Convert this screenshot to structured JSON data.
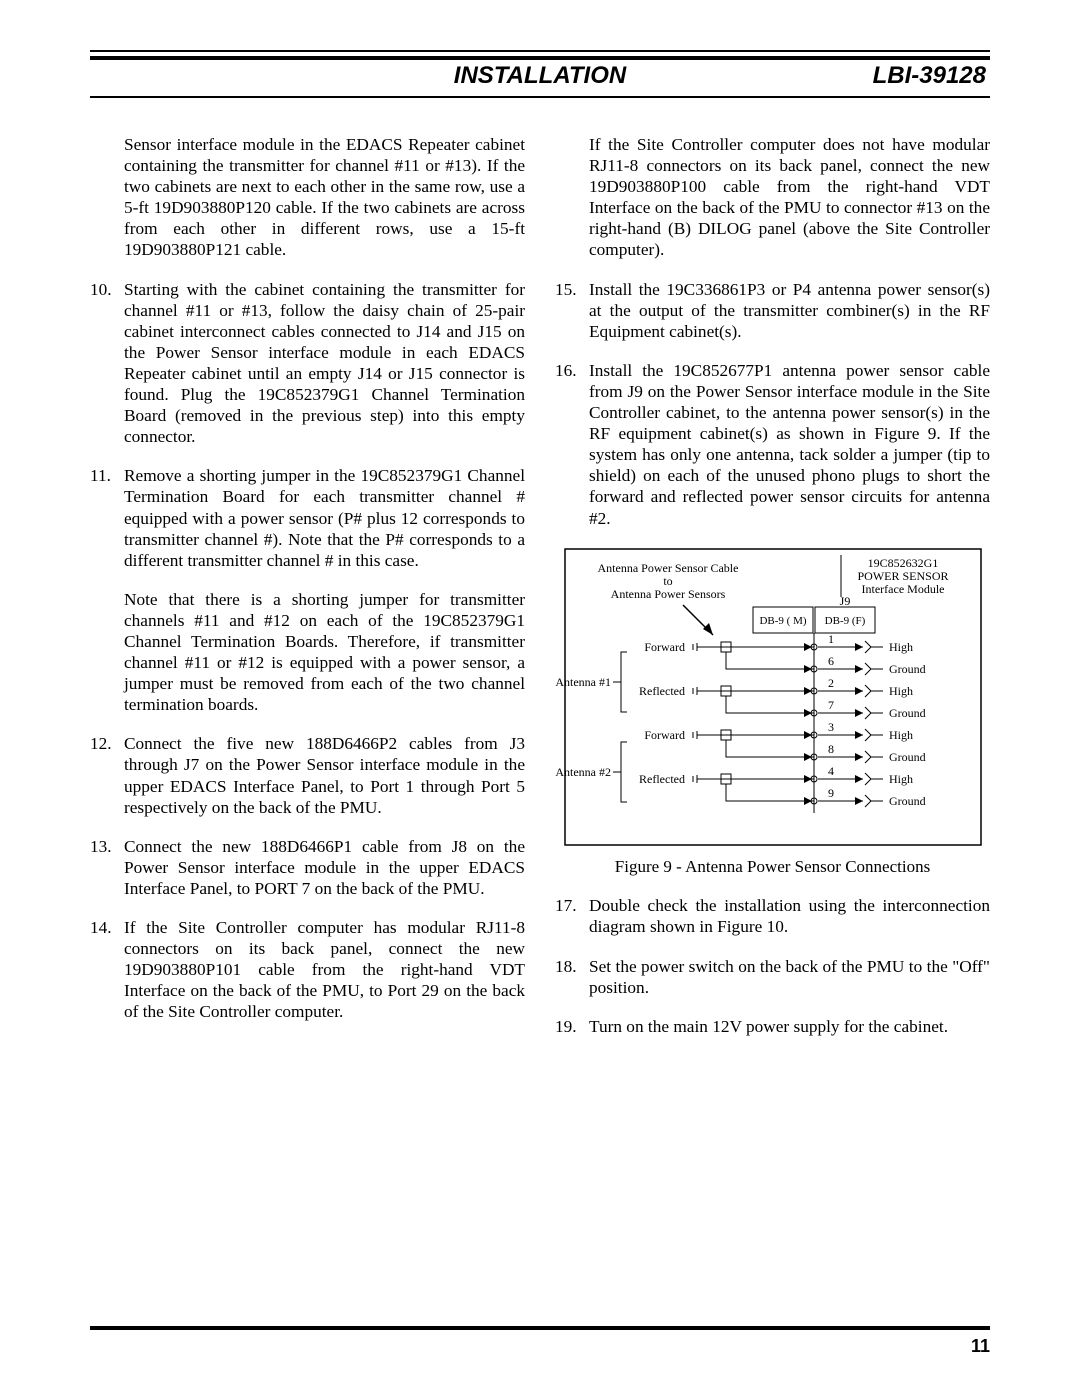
{
  "header": {
    "title": "INSTALLATION",
    "doc_id": "LBI-39128"
  },
  "page_number": "11",
  "left_column": {
    "intro_cont": "Sensor interface module in the EDACS Repeater cabinet containing the transmitter for channel #11 or #13). If the two cabinets are next to each other in the same row, use a 5-ft 19D903880P120 cable. If the two cabinets are across from each other in different rows, use a 15-ft 19D903880P121 cable.",
    "s10": "Starting with the cabinet containing the transmitter for channel #11 or #13, follow the daisy chain of 25-pair cabinet interconnect cables connected to J14 and J15 on the Power Sensor interface module in each EDACS Repeater cabinet until an empty J14 or J15 connector is found. Plug the 19C852379G1 Channel Termination Board (removed in the previous step) into this empty connector.",
    "s11": "Remove a shorting jumper in the 19C852379G1 Channel Termination Board for each transmitter channel # equipped with a power sensor (P# plus 12 corresponds to transmitter channel #). Note that the P# corresponds to a different transmitter channel # in this case.",
    "s11_note": "Note that there is a shorting jumper for transmitter channels #11 and #12 on each of the 19C852379G1 Channel Termination Boards. Therefore, if transmitter channel #11 or #12 is equipped with a power sensor, a jumper must be removed from each of the two channel termination boards.",
    "s12": "Connect the five new 188D6466P2 cables from J3 through J7 on the Power Sensor interface module in the upper EDACS Interface Panel, to Port 1 through Port 5 respectively on the back of the PMU.",
    "s13": "Connect the new 188D6466P1 cable from J8 on the Power Sensor interface module in the upper EDACS Interface Panel, to PORT 7 on the back of the PMU.",
    "s14": "If the Site Controller computer has modular RJ11-8 connectors on its back panel, connect the new 19D903880P101 cable from the right-hand VDT Interface on the back of the PMU, to Port 29 on the back of the Site Controller computer."
  },
  "right_column": {
    "s14_cont": "If the Site Controller computer does not have modular RJ11-8 connectors on its back panel, connect the new 19D903880P100 cable from the right-hand VDT Interface on the back of the PMU to connector #13 on the right-hand (B) DILOG panel (above the Site Controller computer).",
    "s15": "Install the 19C336861P3 or P4 antenna power sensor(s) at the output of the transmitter combiner(s) in the RF Equipment cabinet(s).",
    "s16": "Install the 19C852677P1 antenna power sensor cable from J9 on the Power Sensor interface module in the Site Controller cabinet, to the antenna power sensor(s) in the RF equipment cabinet(s) as shown in Figure 9. If the system has only one antenna, tack solder a jumper (tip to shield) on each of the unused phono plugs to short the forward and reflected power sensor circuits for antenna #2.",
    "s17": "Double check the installation using the interconnection diagram shown in Figure 10.",
    "s18": "Set the power switch on the back of the PMU to the \"Off\" position.",
    "s19": "Turn on the main 12V power supply for the cabinet."
  },
  "figure": {
    "caption": "Figure 9 - Antenna Power Sensor Connections",
    "box_title_line1": "19C852632G1",
    "box_title_line2": "POWER SENSOR",
    "box_title_line3": "Interface Module",
    "cable_label_line1": "Antenna Power Sensor Cable",
    "cable_label_line2": "to",
    "cable_label_line3": "Antenna Power Sensors",
    "j9": "J9",
    "db9m": "DB-9 ( M)",
    "db9f": "DB-9 (F)",
    "antenna1": "Antenna #1",
    "antenna2": "Antenna #2",
    "labels_left": [
      "Forward",
      "Reflected",
      "Forward",
      "Reflected"
    ],
    "pins": [
      "1",
      "6",
      "2",
      "7",
      "3",
      "8",
      "4",
      "9"
    ],
    "labels_right": [
      "High",
      "Ground",
      "High",
      "Ground",
      "High",
      "Ground",
      "High",
      "Ground"
    ]
  }
}
